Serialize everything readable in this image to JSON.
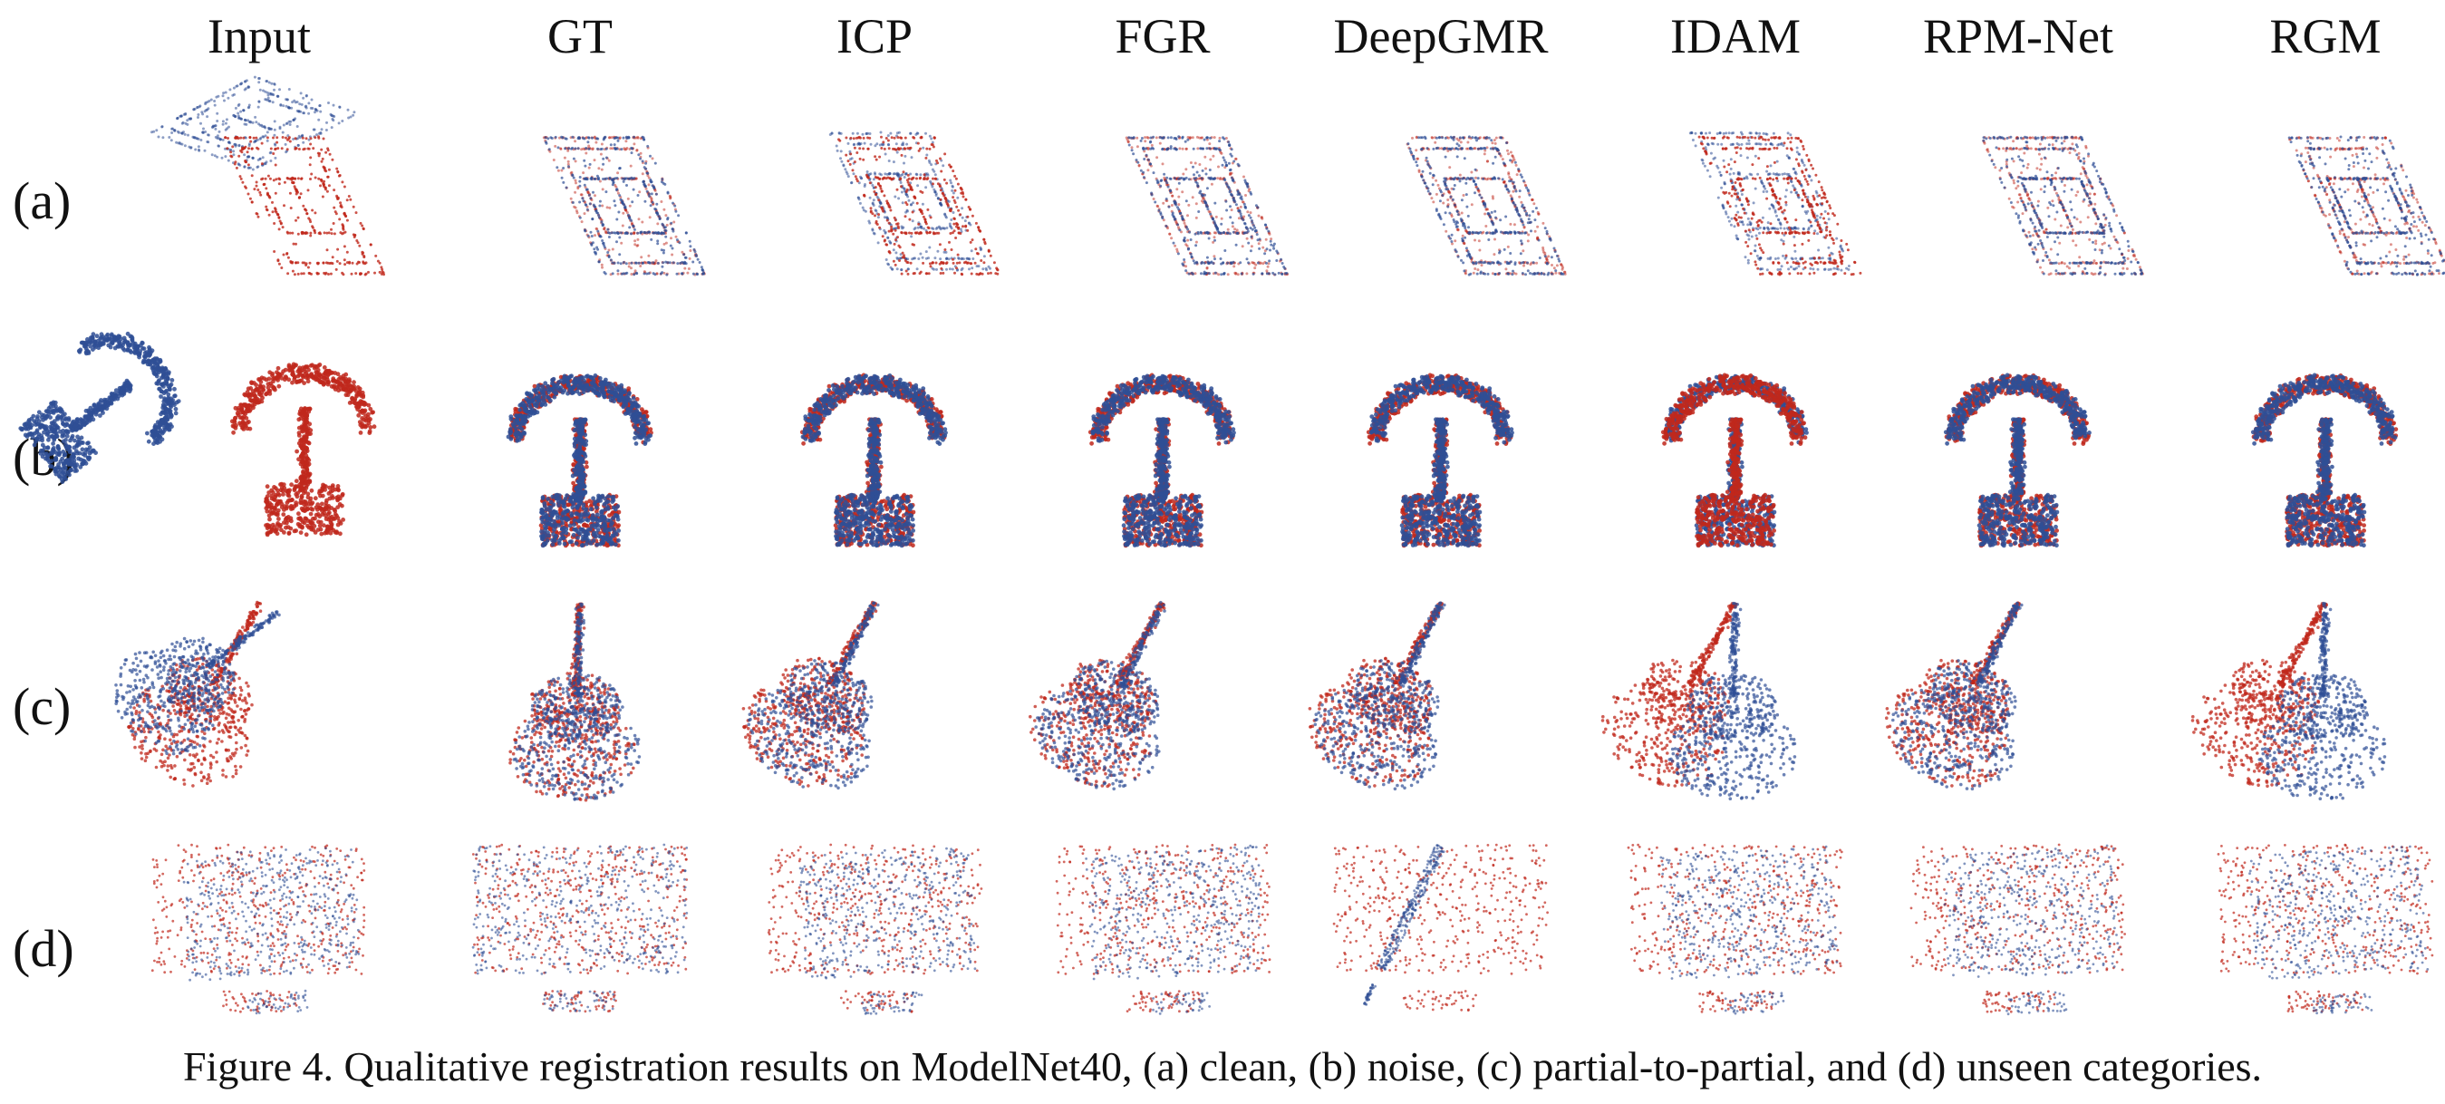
{
  "columns": [
    "Input",
    "GT",
    "ICP",
    "FGR",
    "DeepGMR",
    "IDAM",
    "RPM-Net",
    "RGM"
  ],
  "rows": [
    "(a)",
    "(b)",
    "(c)",
    "(d)"
  ],
  "row_descriptions": [
    "clean",
    "noise",
    "partial-to-partial",
    "unseen categories"
  ],
  "caption": "Figure 4. Qualitative registration results on ModelNet40, (a) clean, (b) noise, (c) partial-to-partial, and (d) unseen categories.",
  "colors": {
    "source": "#2f4f95",
    "target": "#c0281c"
  }
}
